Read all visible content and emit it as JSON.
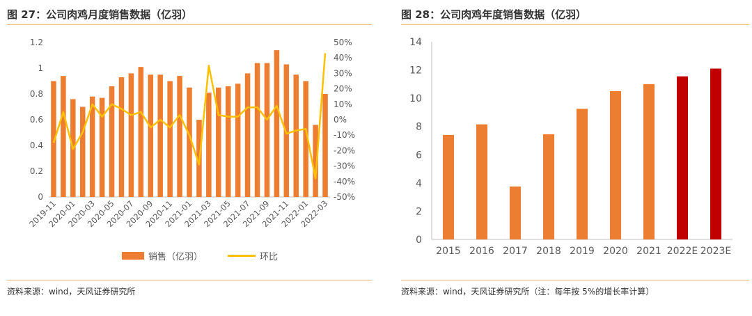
{
  "left": {
    "title": "图 27：公司肉鸡月度销售数据（亿羽）",
    "source": "资料来源：wind，天风证券研究所",
    "chart_data": {
      "type": "bar",
      "categories": [
        "2019-11",
        "2019-12",
        "2020-01",
        "2020-02",
        "2020-03",
        "2020-04",
        "2020-05",
        "2020-06",
        "2020-07",
        "2020-08",
        "2020-09",
        "2020-10",
        "2020-11",
        "2020-12",
        "2021-01",
        "2021-02",
        "2021-03",
        "2021-04",
        "2021-05",
        "2021-06",
        "2021-07",
        "2021-08",
        "2021-09",
        "2021-10",
        "2021-11",
        "2021-12",
        "2022-01",
        "2022-02",
        "2022-03"
      ],
      "tick_labels": [
        "2019-11",
        "2020-01",
        "2020-03",
        "2020-05",
        "2020-07",
        "2020-09",
        "2020-11",
        "2021-01",
        "2021-03",
        "2021-05",
        "2021-07",
        "2021-09",
        "2021-11",
        "2022-01",
        "2022-03"
      ],
      "series": [
        {
          "name": "销售（亿羽）",
          "type": "bar",
          "axis": "left",
          "color": "#ED7D31",
          "values": [
            0.9,
            0.94,
            0.76,
            0.7,
            0.78,
            0.77,
            0.86,
            0.93,
            0.96,
            1.01,
            0.95,
            0.95,
            0.9,
            0.94,
            0.85,
            0.6,
            0.81,
            0.85,
            0.86,
            0.88,
            0.96,
            1.04,
            1.04,
            1.14,
            1.03,
            0.95,
            0.9,
            0.56,
            0.8
          ]
        },
        {
          "name": "环比",
          "type": "line",
          "axis": "right",
          "color": "#FFC000",
          "values": [
            -15,
            5,
            -19,
            -8,
            10,
            2,
            10,
            7,
            3,
            5,
            -5,
            0,
            -5,
            3,
            -10,
            -29,
            35,
            3,
            2,
            2,
            8,
            8,
            0,
            9,
            -9,
            -7,
            -6,
            -38,
            43
          ]
        }
      ],
      "ylim_left": [
        0,
        1.2
      ],
      "yticks_left": [
        "0",
        "0.2",
        "0.4",
        "0.6",
        "0.8",
        "1",
        "1.2"
      ],
      "ylim_right": [
        -50,
        50
      ],
      "yticks_right": [
        "-50%",
        "-40%",
        "-30%",
        "-20%",
        "-10%",
        "0%",
        "10%",
        "20%",
        "30%",
        "40%",
        "50%"
      ],
      "legend": "bottom"
    }
  },
  "right": {
    "title": "图 28：公司肉鸡年度销售数据（亿羽）",
    "source": "资料来源：wind，天风证券研究所（注：每年按 5%的增长率计算）",
    "chart_data": {
      "type": "bar",
      "categories": [
        "2015",
        "2016",
        "2017",
        "2018",
        "2019",
        "2020",
        "2021",
        "2022E",
        "2023E"
      ],
      "values": [
        7.4,
        8.15,
        3.75,
        7.45,
        9.25,
        10.5,
        11.0,
        11.55,
        12.1
      ],
      "colors": [
        "#ED7D31",
        "#ED7D31",
        "#ED7D31",
        "#ED7D31",
        "#ED7D31",
        "#ED7D31",
        "#ED7D31",
        "#C00000",
        "#C00000"
      ],
      "ylim": [
        0,
        14
      ],
      "yticks": [
        "0",
        "2",
        "4",
        "6",
        "8",
        "10",
        "12",
        "14"
      ]
    }
  }
}
